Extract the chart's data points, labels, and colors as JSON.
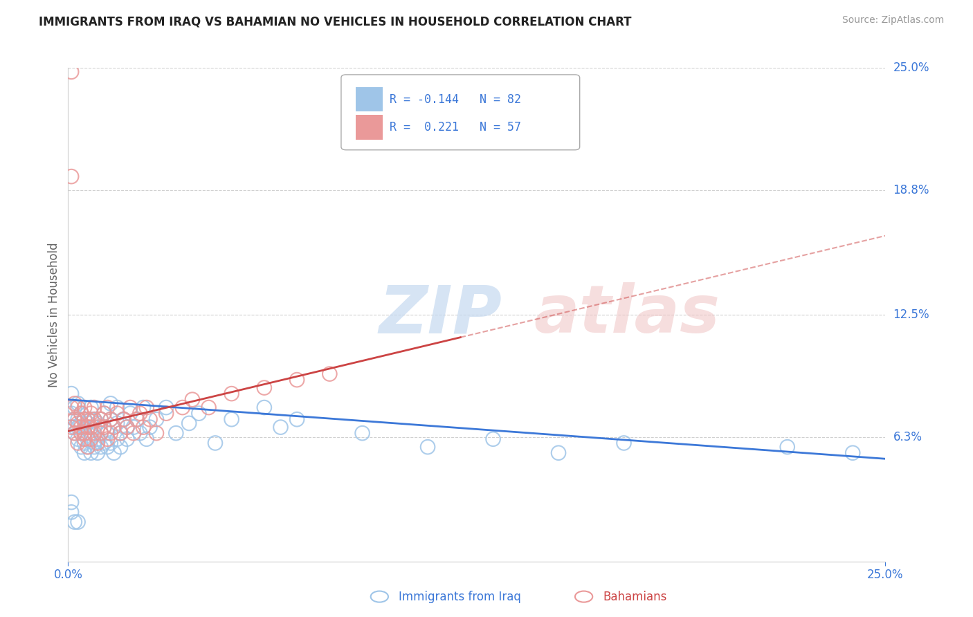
{
  "title": "IMMIGRANTS FROM IRAQ VS BAHAMIAN NO VEHICLES IN HOUSEHOLD CORRELATION CHART",
  "source_text": "Source: ZipAtlas.com",
  "xlabel_blue": "Immigrants from Iraq",
  "xlabel_pink": "Bahamians",
  "ylabel": "No Vehicles in Household",
  "xlim": [
    0.0,
    0.25
  ],
  "ylim": [
    0.0,
    0.25
  ],
  "xtick_labels": [
    "0.0%",
    "25.0%"
  ],
  "ytick_labels": [
    "6.3%",
    "12.5%",
    "18.8%",
    "25.0%"
  ],
  "ytick_values": [
    0.063,
    0.125,
    0.188,
    0.25
  ],
  "grid_color": "#d0d0d0",
  "background_color": "#ffffff",
  "blue_color": "#9fc5e8",
  "pink_color": "#ea9999",
  "blue_line_color": "#3c78d8",
  "pink_line_color": "#cc4444",
  "blue_text_color": "#3c78d8",
  "legend_R_blue": "-0.144",
  "legend_N_blue": "82",
  "legend_R_pink": "0.221",
  "legend_N_pink": "57",
  "blue_scatter_x": [
    0.001,
    0.001,
    0.002,
    0.002,
    0.002,
    0.002,
    0.003,
    0.003,
    0.003,
    0.003,
    0.004,
    0.004,
    0.004,
    0.004,
    0.005,
    0.005,
    0.005,
    0.005,
    0.005,
    0.006,
    0.006,
    0.006,
    0.007,
    0.007,
    0.007,
    0.007,
    0.008,
    0.008,
    0.008,
    0.008,
    0.009,
    0.009,
    0.009,
    0.01,
    0.01,
    0.01,
    0.011,
    0.011,
    0.011,
    0.012,
    0.012,
    0.013,
    0.013,
    0.013,
    0.014,
    0.014,
    0.015,
    0.015,
    0.015,
    0.016,
    0.016,
    0.017,
    0.018,
    0.018,
    0.019,
    0.02,
    0.021,
    0.022,
    0.023,
    0.024,
    0.025,
    0.027,
    0.03,
    0.033,
    0.037,
    0.04,
    0.045,
    0.05,
    0.06,
    0.065,
    0.07,
    0.09,
    0.11,
    0.13,
    0.15,
    0.17,
    0.22,
    0.24,
    0.001,
    0.001,
    0.002,
    0.003
  ],
  "blue_scatter_y": [
    0.075,
    0.085,
    0.068,
    0.078,
    0.072,
    0.065,
    0.062,
    0.072,
    0.068,
    0.08,
    0.065,
    0.075,
    0.058,
    0.07,
    0.055,
    0.065,
    0.072,
    0.068,
    0.06,
    0.062,
    0.07,
    0.058,
    0.065,
    0.072,
    0.055,
    0.078,
    0.06,
    0.068,
    0.058,
    0.072,
    0.062,
    0.055,
    0.07,
    0.065,
    0.058,
    0.072,
    0.06,
    0.068,
    0.075,
    0.058,
    0.065,
    0.072,
    0.06,
    0.08,
    0.068,
    0.055,
    0.07,
    0.062,
    0.078,
    0.065,
    0.058,
    0.072,
    0.068,
    0.062,
    0.075,
    0.068,
    0.072,
    0.065,
    0.078,
    0.062,
    0.068,
    0.072,
    0.078,
    0.065,
    0.07,
    0.075,
    0.06,
    0.072,
    0.078,
    0.068,
    0.072,
    0.065,
    0.058,
    0.062,
    0.055,
    0.06,
    0.058,
    0.055,
    0.03,
    0.025,
    0.02,
    0.02
  ],
  "pink_scatter_x": [
    0.001,
    0.001,
    0.002,
    0.002,
    0.002,
    0.003,
    0.003,
    0.003,
    0.004,
    0.004,
    0.004,
    0.005,
    0.005,
    0.005,
    0.005,
    0.006,
    0.006,
    0.006,
    0.007,
    0.007,
    0.007,
    0.008,
    0.008,
    0.008,
    0.009,
    0.009,
    0.01,
    0.01,
    0.011,
    0.011,
    0.012,
    0.012,
    0.013,
    0.013,
    0.014,
    0.015,
    0.016,
    0.017,
    0.018,
    0.019,
    0.02,
    0.021,
    0.022,
    0.023,
    0.024,
    0.025,
    0.027,
    0.03,
    0.035,
    0.038,
    0.043,
    0.05,
    0.06,
    0.07,
    0.08,
    0.001,
    0.001
  ],
  "pink_scatter_y": [
    0.068,
    0.078,
    0.065,
    0.072,
    0.08,
    0.06,
    0.07,
    0.078,
    0.065,
    0.075,
    0.068,
    0.062,
    0.072,
    0.065,
    0.078,
    0.058,
    0.068,
    0.072,
    0.062,
    0.075,
    0.068,
    0.065,
    0.072,
    0.078,
    0.06,
    0.068,
    0.072,
    0.065,
    0.075,
    0.068,
    0.062,
    0.078,
    0.065,
    0.072,
    0.068,
    0.075,
    0.065,
    0.072,
    0.068,
    0.078,
    0.065,
    0.072,
    0.075,
    0.068,
    0.078,
    0.072,
    0.065,
    0.075,
    0.078,
    0.082,
    0.078,
    0.085,
    0.088,
    0.092,
    0.095,
    0.195,
    0.248
  ],
  "pink_trend_x0": 0.0,
  "pink_trend_x1": 0.25,
  "pink_trend_y0": 0.066,
  "pink_trend_y1": 0.165,
  "pink_trend_solid_x1": 0.12,
  "blue_trend_x0": 0.0,
  "blue_trend_x1": 0.25,
  "blue_trend_y0": 0.082,
  "blue_trend_y1": 0.052
}
